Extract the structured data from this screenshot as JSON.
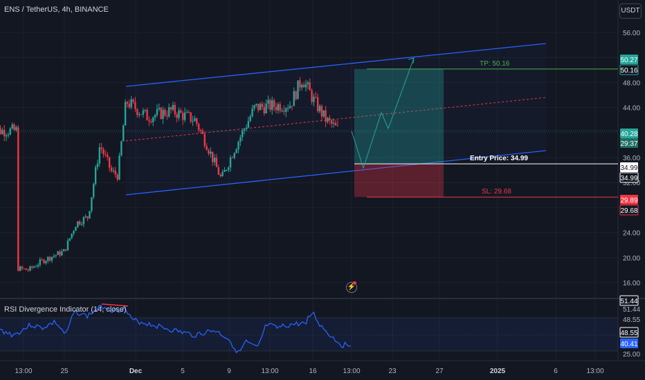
{
  "header": {
    "title": "ENS / TetherUS, 4h, BINANCE",
    "currency_button": "USDT"
  },
  "colors": {
    "background": "#131722",
    "up": "#26a69a",
    "down": "#f23645",
    "channel": "#2962ff",
    "midline": "#f23645",
    "tp": "#4caf50",
    "sl": "#f23645",
    "rsi_line": "#2962ff",
    "path": "#26a69a"
  },
  "price_axis": {
    "ticks": [
      "56.00",
      "48.00",
      "44.00",
      "36.00",
      "32.00",
      "24.00",
      "20.00",
      "16.00"
    ],
    "tags": [
      {
        "text": "50.27",
        "style": "green"
      },
      {
        "text": "50.16",
        "style": "green-outline"
      },
      {
        "text": "40.28",
        "style": "green"
      },
      {
        "text": "29:37",
        "style": "green-dark"
      },
      {
        "text": "34.99",
        "style": "white"
      },
      {
        "text": "34.99",
        "style": "white-outline"
      },
      {
        "text": "29.89",
        "style": "red"
      },
      {
        "text": "29.68",
        "style": "red-outline"
      }
    ]
  },
  "time_axis": {
    "labels": [
      "13:00",
      "25",
      "Dec",
      "5",
      "9",
      "13:00",
      "16",
      "13:00",
      "23",
      "27",
      "2025",
      "6",
      "13:00"
    ],
    "bold": [
      "Dec",
      "2025"
    ]
  },
  "annotations": {
    "tp_label": "TP: 50.16",
    "entry_label": "Entry Price: 34.99",
    "sl_label": "SL: 29.68"
  },
  "rsi": {
    "title": "RSI Divergence Indicator (14, close)",
    "ticks": [
      "51.44",
      "48.55",
      "25.00"
    ],
    "tags": [
      {
        "text": "51.44",
        "style": "white-outline"
      },
      {
        "text": "48.55",
        "style": "white-outline"
      },
      {
        "text": "40.41",
        "style": "blue"
      }
    ]
  },
  "chart_data": {
    "type": "candlestick",
    "symbol": "ENS / TetherUS",
    "interval": "4h",
    "exchange": "BINANCE",
    "x_axis_labels": [
      "13:00",
      "25",
      "Dec",
      "5",
      "9",
      "13:00",
      "16",
      "13:00",
      "23",
      "27",
      "2025",
      "6",
      "13:00"
    ],
    "close_anchor_points": [
      {
        "x": "Nov 22",
        "y": 18.3
      },
      {
        "x": "Nov 23",
        "y": 18.0
      },
      {
        "x": "Nov 24",
        "y": 19.3
      },
      {
        "x": "Nov 25",
        "y": 20.2
      },
      {
        "x": "Nov 26",
        "y": 21.0
      },
      {
        "x": "Nov 27",
        "y": 25.5
      },
      {
        "x": "Nov 28",
        "y": 26.5
      },
      {
        "x": "Nov 29",
        "y": 38.0
      },
      {
        "x": "Nov 30",
        "y": 33.6
      },
      {
        "x": "Dec 1",
        "y": 45.0
      },
      {
        "x": "Dec 3",
        "y": 42.5
      },
      {
        "x": "Dec 5",
        "y": 43.5
      },
      {
        "x": "Dec 7",
        "y": 42.0
      },
      {
        "x": "Dec 8",
        "y": 38.0
      },
      {
        "x": "Dec 9",
        "y": 32.5
      },
      {
        "x": "Dec 10",
        "y": 37.0
      },
      {
        "x": "Dec 12",
        "y": 44.0
      },
      {
        "x": "Dec 15",
        "y": 44.5
      },
      {
        "x": "Dec 16",
        "y": 48.7
      },
      {
        "x": "Dec 17",
        "y": 45.0
      },
      {
        "x": "Dec 18",
        "y": 42.0
      },
      {
        "x": "Dec 19",
        "y": 40.3
      }
    ],
    "last_price": 40.28,
    "trade_setup": {
      "take_profit": 50.16,
      "entry": 34.99,
      "stop_loss": 29.68
    },
    "rsi_last": 40.41,
    "y_axis_range": [
      14,
      58
    ]
  }
}
